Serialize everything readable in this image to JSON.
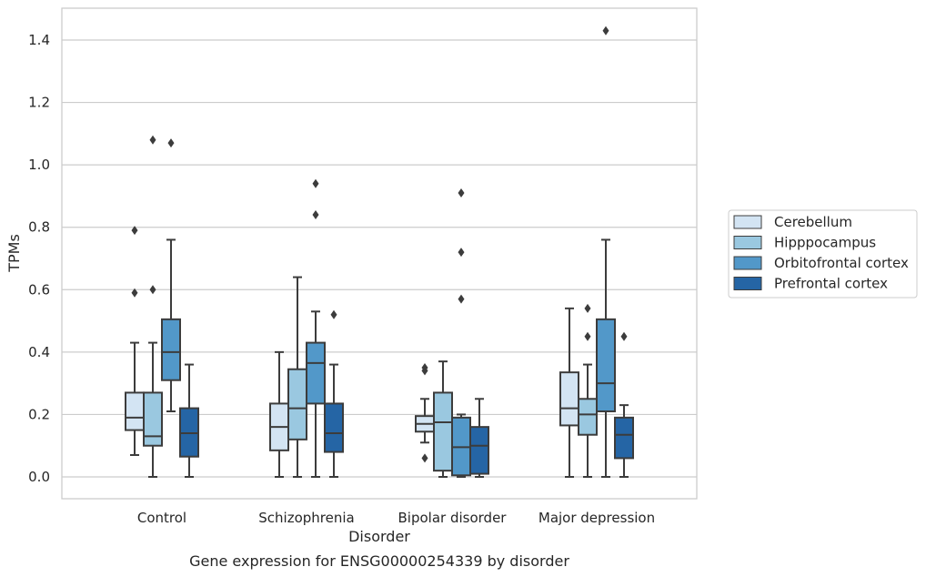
{
  "chart_data": {
    "type": "box",
    "caption": "Gene expression for ENSG00000254339 by disorder",
    "xlabel": "Disorder",
    "ylabel": "TPMs",
    "ylim": [
      -0.07,
      1.5
    ],
    "yticks": [
      0.0,
      0.2,
      0.4,
      0.6,
      0.8,
      1.0,
      1.2,
      1.4
    ],
    "ytick_labels": [
      "0.0",
      "0.2",
      "0.4",
      "0.6",
      "0.8",
      "1.0",
      "1.2",
      "1.4"
    ],
    "categories": [
      "Control",
      "Schizophrenia",
      "Bipolar disorder",
      "Major depression"
    ],
    "grid": "horizontal",
    "legend_position": "right",
    "series": [
      {
        "name": "Cerebellum",
        "color": "#d3e4f3",
        "boxes": [
          {
            "whislo": 0.07,
            "q1": 0.15,
            "med": 0.19,
            "q3": 0.27,
            "whishi": 0.43,
            "fliers": [
              0.59,
              0.79
            ]
          },
          {
            "whislo": 0.0,
            "q1": 0.085,
            "med": 0.16,
            "q3": 0.235,
            "whishi": 0.4,
            "fliers": []
          },
          {
            "whislo": 0.11,
            "q1": 0.145,
            "med": 0.17,
            "q3": 0.195,
            "whishi": 0.25,
            "fliers": [
              0.06,
              0.34,
              0.35
            ]
          },
          {
            "whislo": 0.0,
            "q1": 0.165,
            "med": 0.22,
            "q3": 0.335,
            "whishi": 0.54,
            "fliers": []
          }
        ]
      },
      {
        "name": "Hipppocampus",
        "color": "#9ac8e0",
        "boxes": [
          {
            "whislo": 0.0,
            "q1": 0.1,
            "med": 0.13,
            "q3": 0.27,
            "whishi": 0.43,
            "fliers": [
              0.6,
              1.08
            ]
          },
          {
            "whislo": 0.0,
            "q1": 0.12,
            "med": 0.22,
            "q3": 0.345,
            "whishi": 0.64,
            "fliers": []
          },
          {
            "whislo": 0.0,
            "q1": 0.02,
            "med": 0.175,
            "q3": 0.27,
            "whishi": 0.37,
            "fliers": []
          },
          {
            "whislo": 0.0,
            "q1": 0.135,
            "med": 0.2,
            "q3": 0.25,
            "whishi": 0.36,
            "fliers": [
              0.45,
              0.54
            ]
          }
        ]
      },
      {
        "name": "Orbitofrontal cortex",
        "color": "#5298c9",
        "boxes": [
          {
            "whislo": 0.21,
            "q1": 0.31,
            "med": 0.4,
            "q3": 0.505,
            "whishi": 0.76,
            "fliers": [
              1.07
            ]
          },
          {
            "whislo": 0.0,
            "q1": 0.235,
            "med": 0.365,
            "q3": 0.43,
            "whishi": 0.53,
            "fliers": [
              0.84,
              0.94
            ]
          },
          {
            "whislo": 0.0,
            "q1": 0.005,
            "med": 0.095,
            "q3": 0.19,
            "whishi": 0.2,
            "fliers": [
              0.57,
              0.72,
              0.91
            ]
          },
          {
            "whislo": 0.0,
            "q1": 0.21,
            "med": 0.3,
            "q3": 0.505,
            "whishi": 0.76,
            "fliers": [
              1.43
            ]
          }
        ]
      },
      {
        "name": "Prefrontal cortex",
        "color": "#2565a5",
        "boxes": [
          {
            "whislo": 0.0,
            "q1": 0.065,
            "med": 0.14,
            "q3": 0.22,
            "whishi": 0.36,
            "fliers": []
          },
          {
            "whislo": 0.0,
            "q1": 0.08,
            "med": 0.14,
            "q3": 0.235,
            "whishi": 0.36,
            "fliers": [
              0.52
            ]
          },
          {
            "whislo": 0.0,
            "q1": 0.01,
            "med": 0.1,
            "q3": 0.16,
            "whishi": 0.25,
            "fliers": []
          },
          {
            "whislo": 0.0,
            "q1": 0.06,
            "med": 0.135,
            "q3": 0.19,
            "whishi": 0.23,
            "fliers": [
              0.45
            ]
          }
        ]
      }
    ]
  }
}
